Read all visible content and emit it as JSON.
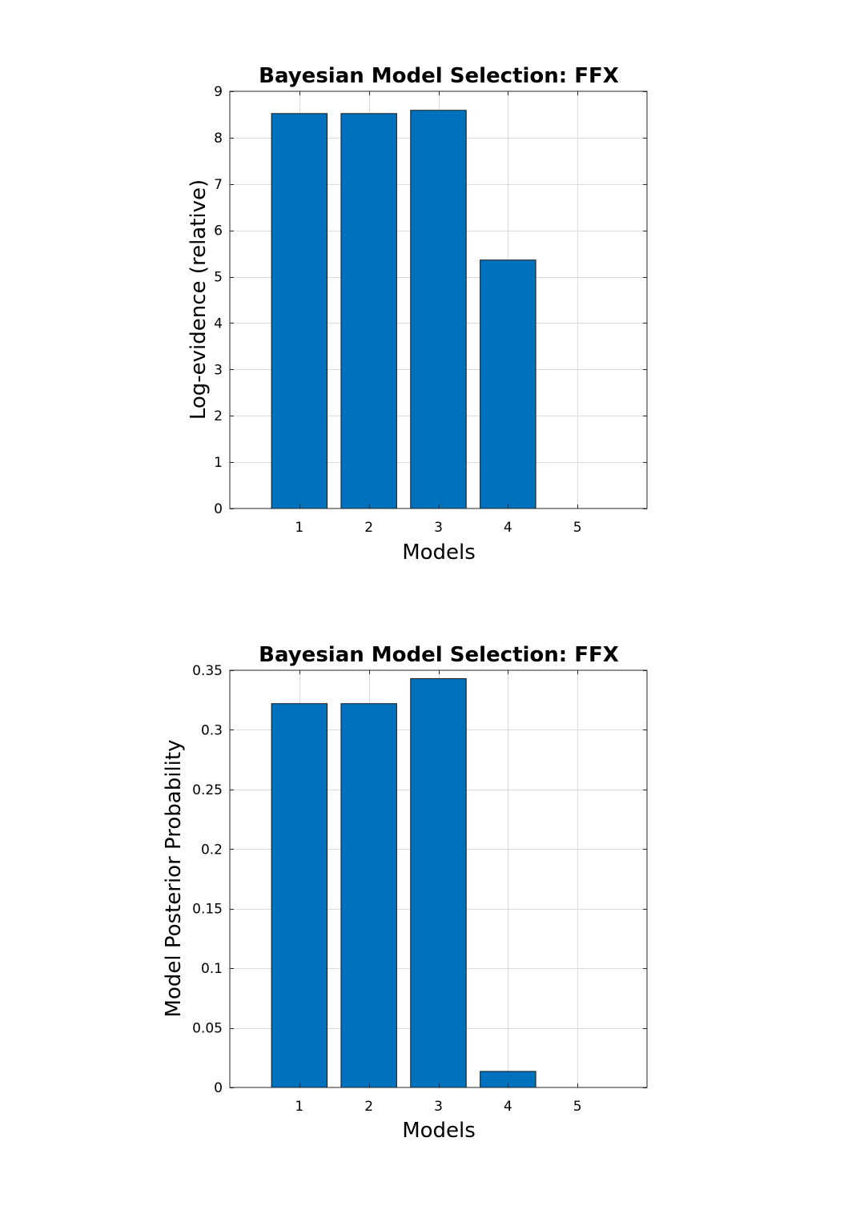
{
  "chart_data": [
    {
      "type": "bar",
      "title": "Bayesian Model Selection: FFX",
      "xlabel": "Models",
      "ylabel": "Log-evidence (relative)",
      "categories": [
        "1",
        "2",
        "3",
        "4",
        "5"
      ],
      "values": [
        8.52,
        8.52,
        8.59,
        5.36,
        0
      ],
      "xlim": [
        0,
        6
      ],
      "ylim": [
        0,
        9
      ],
      "yticks": [
        "0",
        "1",
        "2",
        "3",
        "4",
        "5",
        "6",
        "7",
        "8",
        "9"
      ],
      "ytick_values": [
        0,
        1,
        2,
        3,
        4,
        5,
        6,
        7,
        8,
        9
      ],
      "grid": true,
      "bar_color": "#0072bd"
    },
    {
      "type": "bar",
      "title": "Bayesian Model Selection: FFX",
      "xlabel": "Models",
      "ylabel": "Model Posterior Probability",
      "categories": [
        "1",
        "2",
        "3",
        "4",
        "5"
      ],
      "values": [
        0.322,
        0.322,
        0.343,
        0.0135,
        0
      ],
      "xlim": [
        0,
        6
      ],
      "ylim": [
        0,
        0.35
      ],
      "yticks": [
        "0",
        "0.05",
        "0.1",
        "0.15",
        "0.2",
        "0.25",
        "0.3",
        "0.35"
      ],
      "ytick_values": [
        0,
        0.05,
        0.1,
        0.15,
        0.2,
        0.25,
        0.3,
        0.35
      ],
      "grid": true,
      "bar_color": "#0072bd"
    }
  ]
}
